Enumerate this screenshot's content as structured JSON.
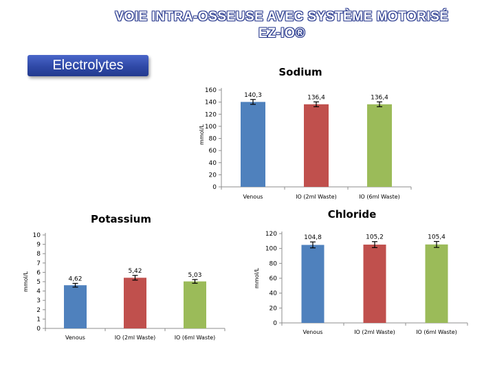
{
  "header": {
    "title_line1": "VOIE INTRA-OSSEUSE AVEC SYSTÈME MOTORISÉ",
    "title_line2": "EZ-IO®",
    "badge": "Electrolytes"
  },
  "colors": {
    "bar1": "#4f81bd",
    "bar2": "#c0504d",
    "bar3": "#9bbb59",
    "axis": "#8c8c8c"
  },
  "chart_data": [
    {
      "id": "sodium",
      "type": "bar",
      "title": "Sodium",
      "ylabel": "mmol/L",
      "categories": [
        "Venous",
        "IO (2ml Waste)",
        "IO (6ml Waste)"
      ],
      "values": [
        140.3,
        136.4,
        136.4
      ],
      "value_labels": [
        "140,3",
        "136,4",
        "136,4"
      ],
      "ylim": [
        0,
        160
      ],
      "ticks": [
        0,
        20,
        40,
        60,
        80,
        100,
        120,
        140,
        160
      ],
      "error": [
        4,
        4,
        4
      ]
    },
    {
      "id": "potassium",
      "type": "bar",
      "title": "Potassium",
      "ylabel": "mmol/L",
      "categories": [
        "Venous",
        "IO (2ml Waste)",
        "IO (6ml Waste)"
      ],
      "values": [
        4.62,
        5.42,
        5.03
      ],
      "value_labels": [
        "4,62",
        "5,42",
        "5,03"
      ],
      "ylim": [
        0,
        10
      ],
      "ticks": [
        0,
        1,
        2,
        3,
        4,
        5,
        6,
        7,
        8,
        9,
        10
      ],
      "error": [
        0.2,
        0.25,
        0.2
      ]
    },
    {
      "id": "chloride",
      "type": "bar",
      "title": "Chloride",
      "ylabel": "mmol/L",
      "categories": [
        "Venous",
        "IO (2ml Waste)",
        "IO (6ml Waste)"
      ],
      "values": [
        104.8,
        105.2,
        105.4
      ],
      "value_labels": [
        "104,8",
        "105,2",
        "105,4"
      ],
      "ylim": [
        0,
        120
      ],
      "ticks": [
        0,
        20,
        40,
        60,
        80,
        100,
        120
      ],
      "error": [
        4,
        4,
        4
      ]
    }
  ]
}
